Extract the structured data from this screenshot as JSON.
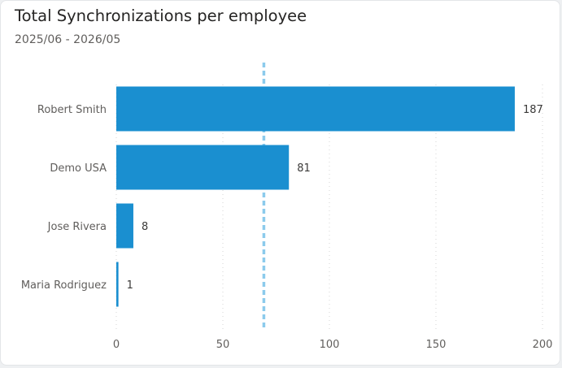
{
  "chart_data": {
    "type": "bar",
    "orientation": "horizontal",
    "title": "Total Synchronizations per employee",
    "subtitle": "2025/06 - 2026/05",
    "categories": [
      "Robert Smith",
      "Demo USA",
      "Jose Rivera",
      "Maria Rodriguez"
    ],
    "values": [
      187,
      81,
      8,
      1
    ],
    "data_labels": [
      "187",
      "81",
      "8",
      "1"
    ],
    "xlim": [
      0,
      200
    ],
    "xticks": [
      0,
      50,
      100,
      150,
      200
    ],
    "xtick_labels": [
      "0",
      "50",
      "100",
      "150",
      "200"
    ],
    "grid": true,
    "reference_line": {
      "value": 69.25,
      "style": "dashed"
    },
    "colors": {
      "bar": "#1a8fd0",
      "reference_line": "#8ccbec",
      "grid": "#d6d6d6",
      "text": "#605e5c"
    }
  }
}
